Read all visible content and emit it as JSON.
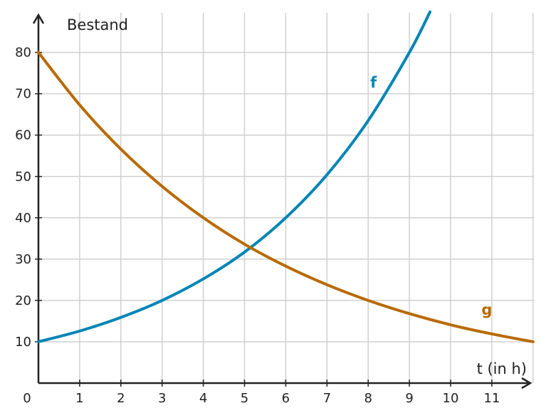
{
  "chart_data": {
    "type": "line",
    "title": "",
    "xlabel": "t (in h)",
    "ylabel": "Bestand",
    "xlim": [
      0,
      12
    ],
    "ylim": [
      0,
      90
    ],
    "grid": true,
    "x_ticks": [
      "0",
      "1",
      "2",
      "3",
      "4",
      "5",
      "6",
      "7",
      "8",
      "9",
      "10",
      "11"
    ],
    "y_ticks": [
      "10",
      "20",
      "30",
      "40",
      "50",
      "60",
      "70",
      "80"
    ],
    "series": [
      {
        "name": "f",
        "color": "#0085b5",
        "x": [
          0,
          1,
          2,
          3,
          4,
          5,
          6,
          7,
          8,
          9,
          9.5
        ],
        "y": [
          10,
          12.6,
          15.9,
          20,
          25.2,
          31.7,
          40,
          50.4,
          63.5,
          80,
          89.8
        ]
      },
      {
        "name": "g",
        "color": "#b86a00",
        "x": [
          0,
          1,
          2,
          3,
          4,
          5,
          6,
          7,
          8,
          9,
          10,
          11,
          12
        ],
        "y": [
          80,
          67.3,
          56.6,
          47.6,
          40,
          33.6,
          28.3,
          23.8,
          20,
          16.8,
          14.1,
          11.9,
          10
        ]
      }
    ],
    "label_positions": {
      "f": [
        8.05,
        71.5
      ],
      "g": [
        10.75,
        16.5
      ]
    }
  }
}
